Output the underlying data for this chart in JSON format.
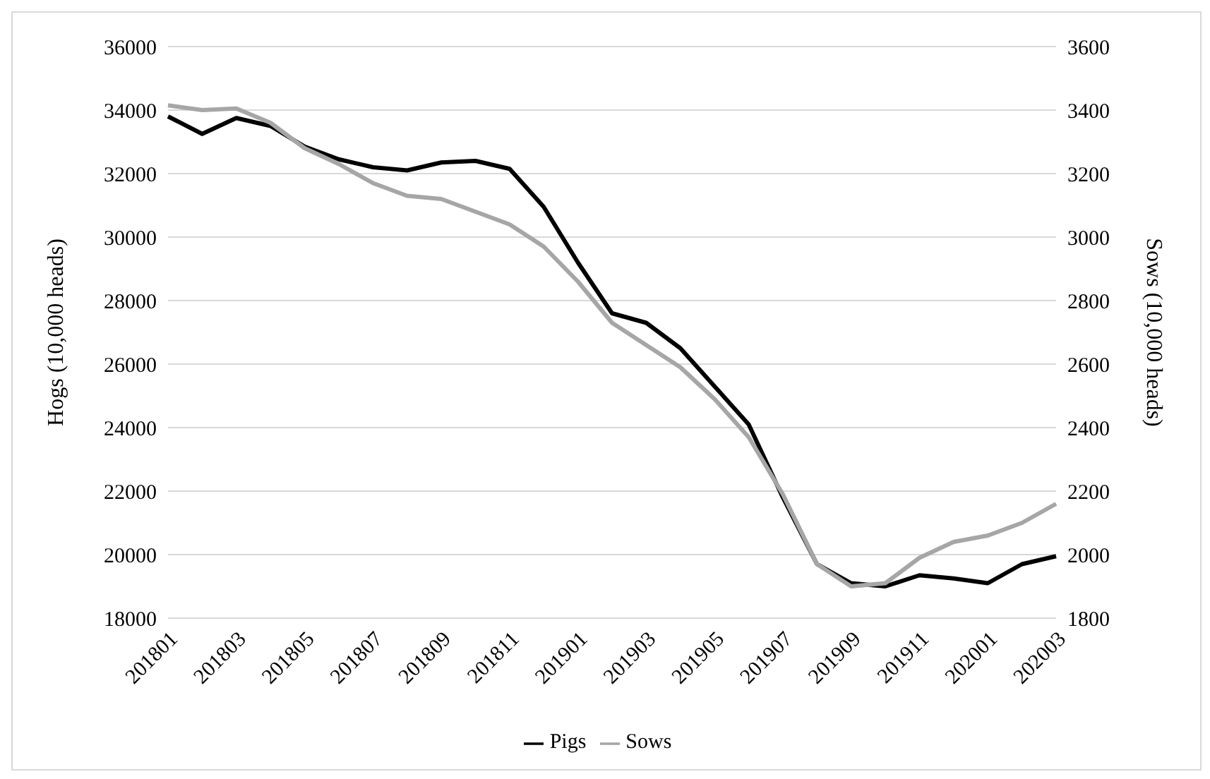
{
  "chart_data": {
    "type": "line",
    "categories": [
      "201801",
      null,
      "201803",
      null,
      "201805",
      null,
      "201807",
      null,
      "201809",
      null,
      "201811",
      null,
      "201901",
      null,
      "201903",
      null,
      "201905",
      null,
      "201907",
      null,
      "201909",
      null,
      "201911",
      null,
      "202001",
      null,
      "202003"
    ],
    "series": [
      {
        "name": "Pigs",
        "color": "#000000",
        "values": [
          33800,
          33250,
          33750,
          33500,
          32850,
          32450,
          32200,
          32100,
          32350,
          32400,
          32150,
          30950,
          29200,
          27600,
          27300,
          26500,
          25300,
          24100,
          21800,
          19700,
          19100,
          19000,
          19350,
          19250,
          19100,
          19700,
          19950
        ]
      },
      {
        "name": "Sows",
        "color": "#a6a6a6",
        "axis": "y2",
        "values": [
          3415,
          3400,
          3405,
          3360,
          3280,
          3230,
          3170,
          3130,
          3120,
          3080,
          3040,
          2970,
          2860,
          2730,
          2660,
          2590,
          2490,
          2370,
          2190,
          1970,
          1900,
          1910,
          1990,
          2040,
          2060,
          2100,
          2160
        ]
      }
    ],
    "ylabel": "Hogs (10,000 heads)",
    "y2label": "Sows (10,000 heads)",
    "ylim": [
      18000,
      36000
    ],
    "yticks": [
      18000,
      20000,
      22000,
      24000,
      26000,
      28000,
      30000,
      32000,
      34000,
      36000
    ],
    "y2lim": [
      1800,
      3600
    ],
    "y2ticks": [
      1800,
      2000,
      2200,
      2400,
      2600,
      2800,
      3000,
      3200,
      3400,
      3600
    ],
    "grid": "y",
    "legend": "bottom",
    "marker": "none",
    "line_style": "solid"
  }
}
